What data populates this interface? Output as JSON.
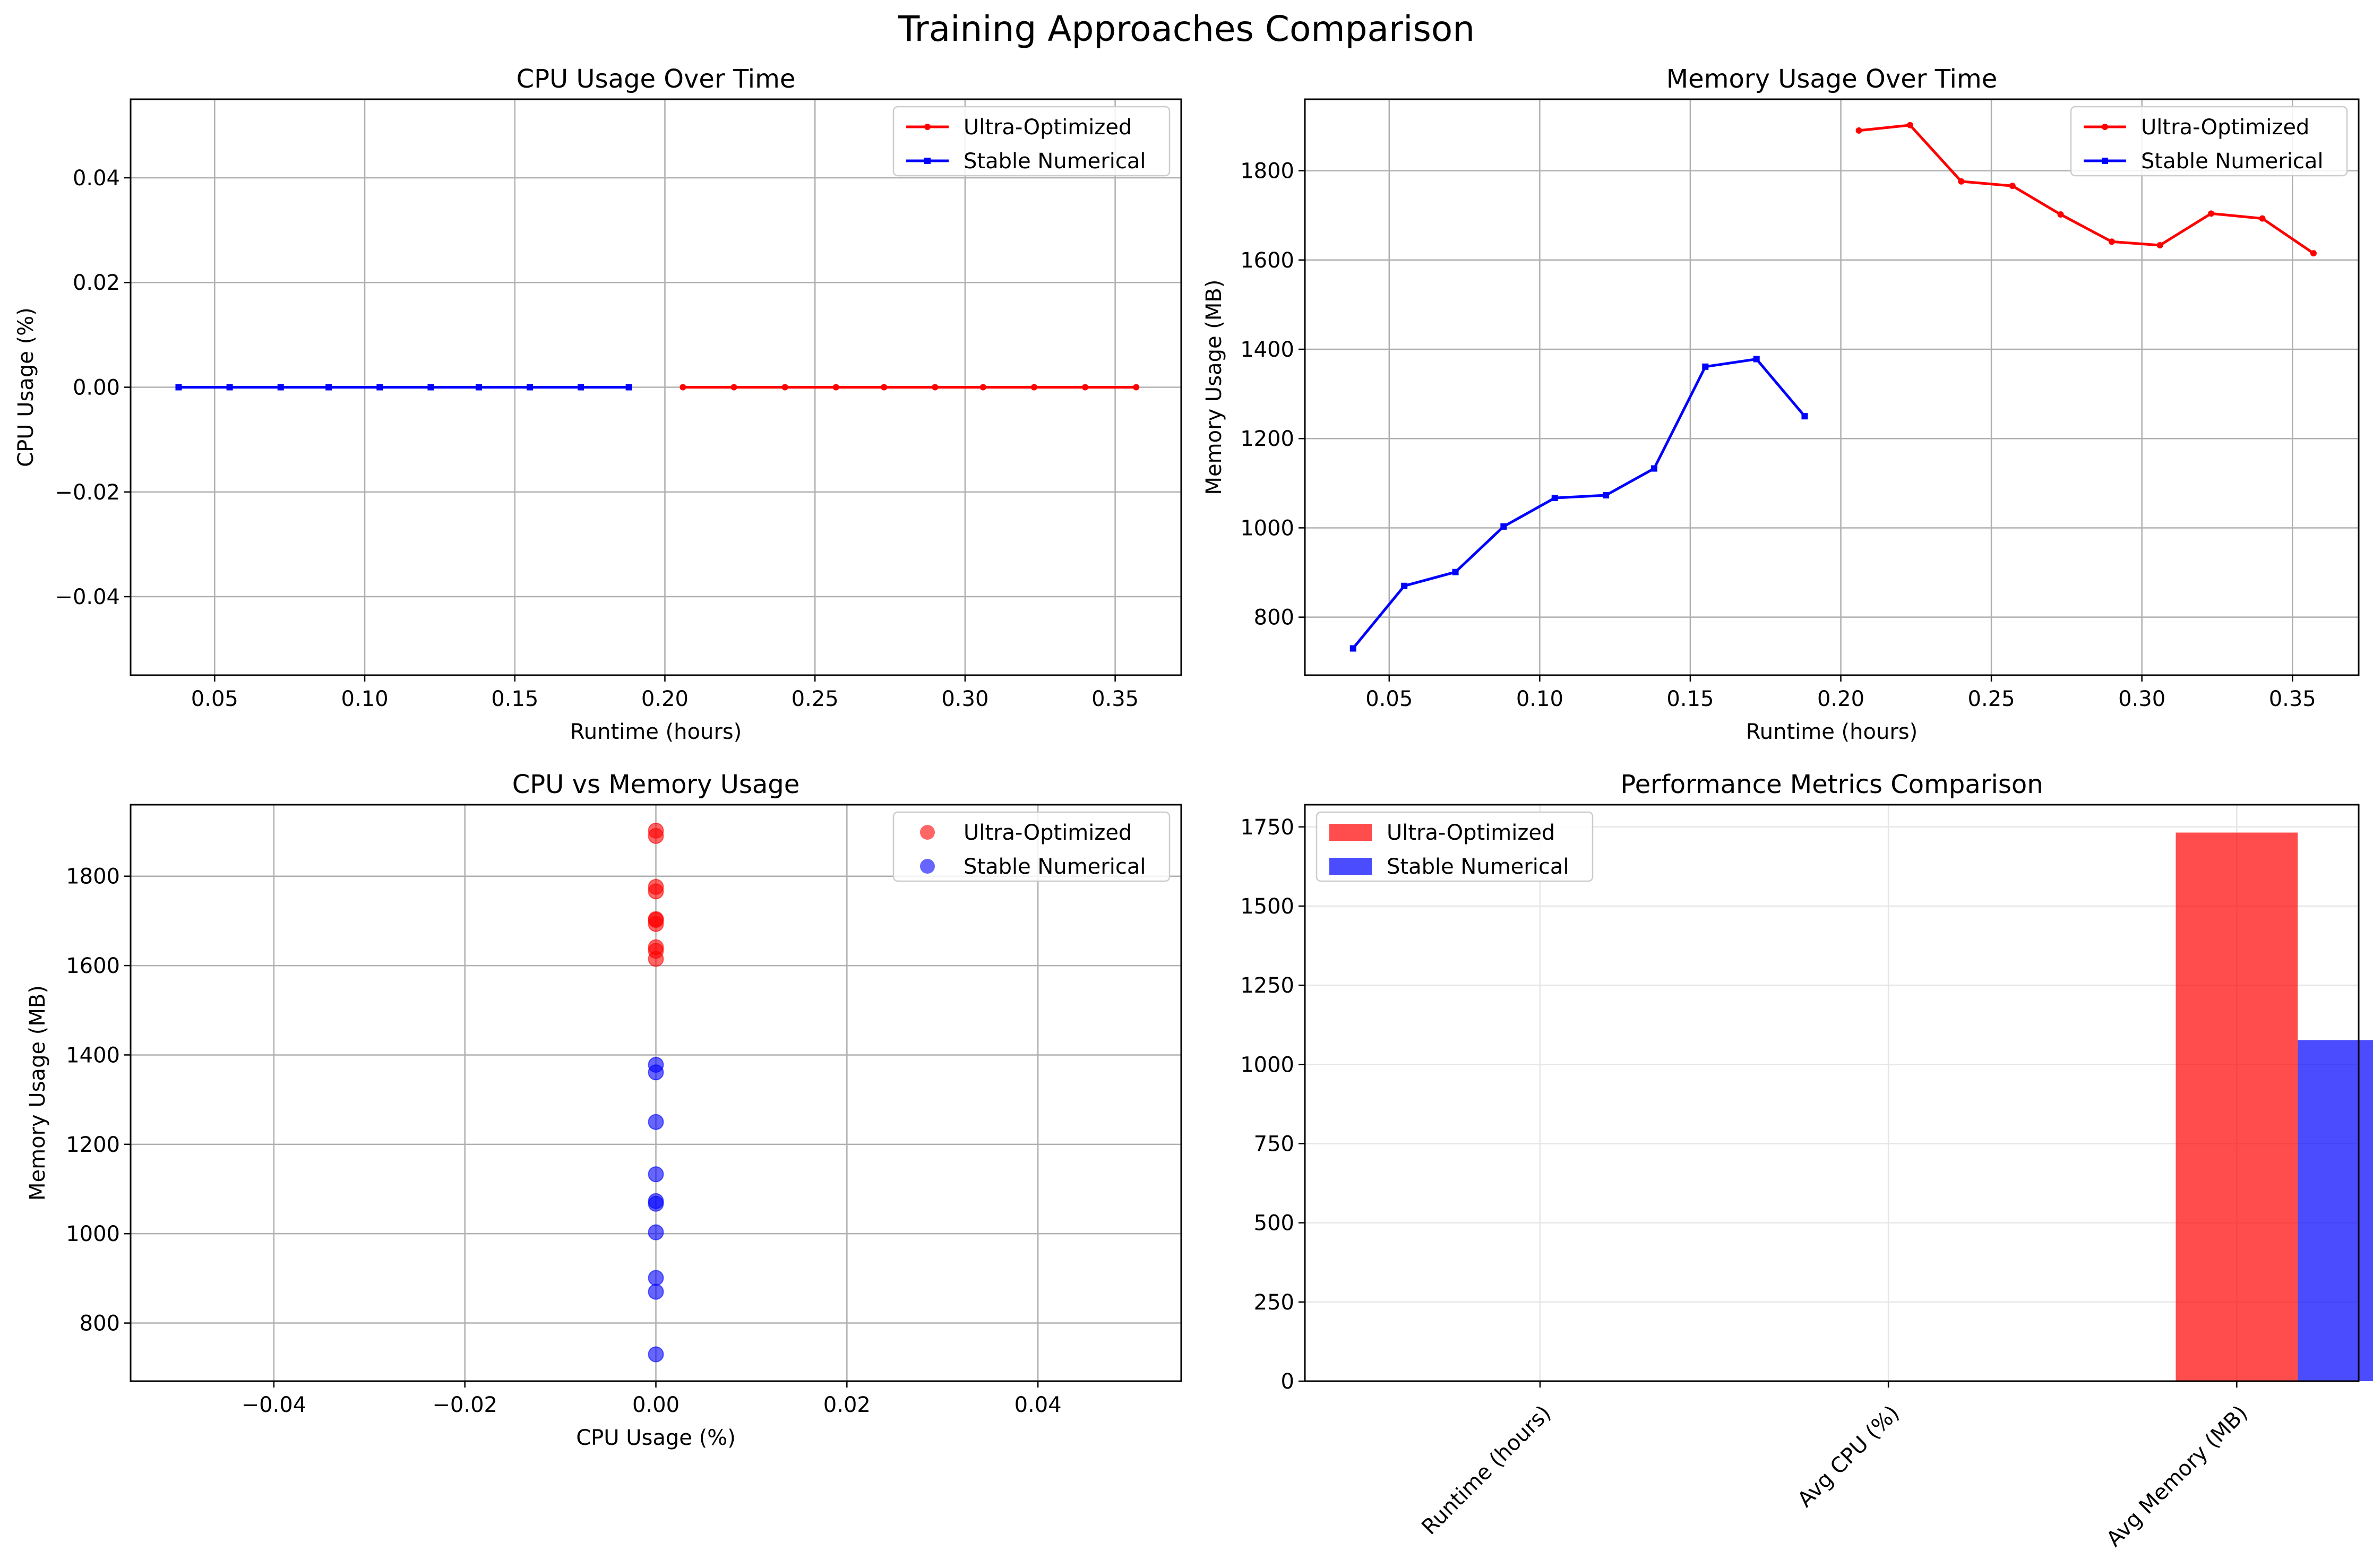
{
  "figure": {
    "title": "Training Approaches Comparison"
  },
  "colors": {
    "ultra": "#ff0000",
    "stable": "#0000ff",
    "grid": "#b0b0b0",
    "axis": "#000000"
  },
  "chart_data": [
    {
      "id": "cpu_time",
      "type": "line",
      "title": "CPU Usage Over Time",
      "xlabel": "Runtime (hours)",
      "ylabel": "CPU Usage (%)",
      "xlim": [
        0.022,
        0.372
      ],
      "ylim": [
        -0.055,
        0.055
      ],
      "xticks": [
        0.05,
        0.1,
        0.15,
        0.2,
        0.25,
        0.3,
        0.35
      ],
      "xtick_labels": [
        "0.05",
        "0.10",
        "0.15",
        "0.20",
        "0.25",
        "0.30",
        "0.35"
      ],
      "yticks": [
        -0.04,
        -0.02,
        0.0,
        0.02,
        0.04
      ],
      "ytick_labels": [
        "−0.04",
        "−0.02",
        "0.00",
        "0.02",
        "0.04"
      ],
      "grid": true,
      "legend": "upper right",
      "series": [
        {
          "name": "Ultra-Optimized",
          "color_key": "ultra",
          "x": [
            0.206,
            0.223,
            0.24,
            0.257,
            0.273,
            0.29,
            0.306,
            0.323,
            0.34,
            0.357
          ],
          "y": [
            0,
            0,
            0,
            0,
            0,
            0,
            0,
            0,
            0,
            0
          ]
        },
        {
          "name": "Stable Numerical",
          "color_key": "stable",
          "x": [
            0.038,
            0.055,
            0.072,
            0.088,
            0.105,
            0.122,
            0.138,
            0.155,
            0.172,
            0.188
          ],
          "y": [
            0,
            0,
            0,
            0,
            0,
            0,
            0,
            0,
            0,
            0
          ]
        }
      ]
    },
    {
      "id": "mem_time",
      "type": "line",
      "title": "Memory Usage Over Time",
      "xlabel": "Runtime (hours)",
      "ylabel": "Memory Usage (MB)",
      "xlim": [
        0.022,
        0.372
      ],
      "ylim": [
        670,
        1960
      ],
      "xticks": [
        0.05,
        0.1,
        0.15,
        0.2,
        0.25,
        0.3,
        0.35
      ],
      "xtick_labels": [
        "0.05",
        "0.10",
        "0.15",
        "0.20",
        "0.25",
        "0.30",
        "0.35"
      ],
      "yticks": [
        800,
        1000,
        1200,
        1400,
        1600,
        1800
      ],
      "ytick_labels": [
        "800",
        "1000",
        "1200",
        "1400",
        "1600",
        "1800"
      ],
      "grid": true,
      "legend": "upper right",
      "series": [
        {
          "name": "Ultra-Optimized",
          "color_key": "ultra",
          "x": [
            0.206,
            0.223,
            0.24,
            0.257,
            0.273,
            0.29,
            0.306,
            0.323,
            0.34,
            0.357
          ],
          "y": [
            1890,
            1902,
            1776,
            1766,
            1702,
            1641,
            1633,
            1704,
            1693,
            1615
          ]
        },
        {
          "name": "Stable Numerical",
          "color_key": "stable",
          "x": [
            0.038,
            0.055,
            0.072,
            0.088,
            0.105,
            0.122,
            0.138,
            0.155,
            0.172,
            0.188
          ],
          "y": [
            730,
            870,
            901,
            1003,
            1067,
            1073,
            1133,
            1361,
            1378,
            1250
          ]
        }
      ]
    },
    {
      "id": "cpu_mem",
      "type": "scatter",
      "title": "CPU vs Memory Usage",
      "xlabel": "CPU Usage (%)",
      "ylabel": "Memory Usage (MB)",
      "xlim": [
        -0.055,
        0.055
      ],
      "ylim": [
        670,
        1960
      ],
      "xticks": [
        -0.04,
        -0.02,
        0.0,
        0.02,
        0.04
      ],
      "xtick_labels": [
        "−0.04",
        "−0.02",
        "0.00",
        "0.02",
        "0.04"
      ],
      "yticks": [
        800,
        1000,
        1200,
        1400,
        1600,
        1800
      ],
      "ytick_labels": [
        "800",
        "1000",
        "1200",
        "1400",
        "1600",
        "1800"
      ],
      "grid": true,
      "legend": "upper right",
      "series": [
        {
          "name": "Ultra-Optimized",
          "color_key": "ultra",
          "x": [
            0,
            0,
            0,
            0,
            0,
            0,
            0,
            0,
            0,
            0
          ],
          "y": [
            1890,
            1902,
            1776,
            1766,
            1702,
            1641,
            1633,
            1704,
            1693,
            1615
          ]
        },
        {
          "name": "Stable Numerical",
          "color_key": "stable",
          "x": [
            0,
            0,
            0,
            0,
            0,
            0,
            0,
            0,
            0,
            0
          ],
          "y": [
            730,
            870,
            901,
            1003,
            1067,
            1073,
            1133,
            1361,
            1378,
            1250
          ]
        }
      ]
    },
    {
      "id": "perf_bar",
      "type": "bar",
      "title": "Performance Metrics Comparison",
      "categories": [
        "Runtime (hours)",
        "Avg CPU (%)",
        "Avg Memory (MB)"
      ],
      "ylim": [
        0,
        1820
      ],
      "yticks": [
        0,
        250,
        500,
        750,
        1000,
        1250,
        1500,
        1750
      ],
      "ytick_labels": [
        "0",
        "250",
        "500",
        "750",
        "1000",
        "1250",
        "1500",
        "1750"
      ],
      "grid": true,
      "legend": "upper left",
      "series": [
        {
          "name": "Ultra-Optimized",
          "color_key": "ultra",
          "values": [
            0.36,
            0,
            1732
          ]
        },
        {
          "name": "Stable Numerical",
          "color_key": "stable",
          "values": [
            0.19,
            0,
            1077
          ]
        }
      ]
    }
  ]
}
